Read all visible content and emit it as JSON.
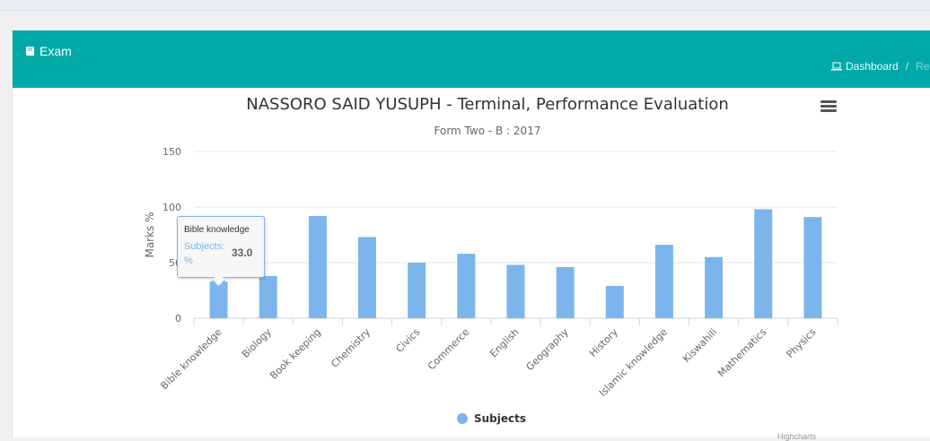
{
  "header": {
    "title": "Exam",
    "breadcrumb_home": "Dashboard",
    "breadcrumb_sep": "/",
    "breadcrumb_current": "Re"
  },
  "chart_data": {
    "type": "bar",
    "title": "NASSORO SAID YUSUPH - Terminal, Performance Evaluation",
    "subtitle": "Form Two - B : 2017",
    "ylabel": "Marks %",
    "xlabel": "",
    "ylim": [
      0,
      150
    ],
    "yticks": [
      0,
      50,
      100,
      150
    ],
    "grid": true,
    "legend_position": "bottom",
    "color": "#7cb5ec",
    "categories": [
      "Bible knowledge",
      "Biology",
      "Book keeping",
      "Chemistry",
      "Civics",
      "Commerce",
      "English",
      "Geography",
      "History",
      "Islamic knowledge",
      "Kiswahili",
      "Mathematics",
      "Physics"
    ],
    "series": [
      {
        "name": "Subjects",
        "values": [
          33,
          38,
          92,
          73,
          50,
          58,
          48,
          46,
          29,
          66,
          55,
          98,
          91
        ]
      }
    ]
  },
  "tooltip": {
    "category": "Bible knowledge",
    "series_label": "Subjects: %",
    "value": "33.0"
  },
  "credits": "Highcharts"
}
